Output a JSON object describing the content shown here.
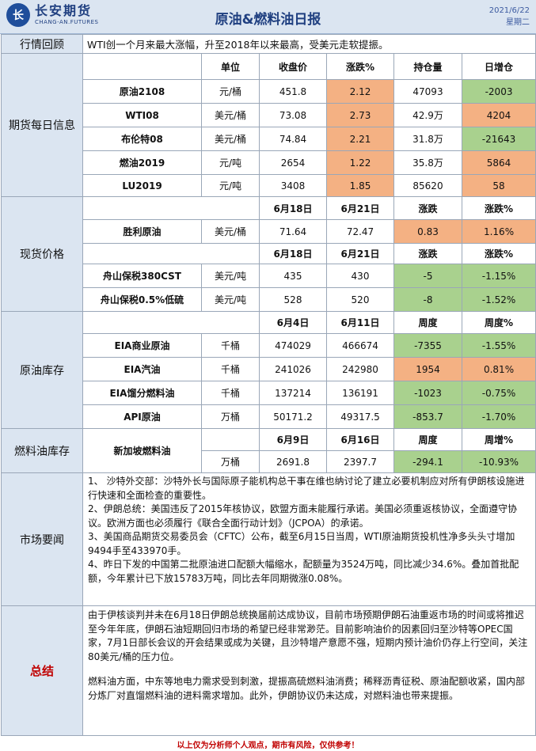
{
  "header": {
    "logo_mark": "长",
    "logo_cn": "长安期货",
    "logo_en": "CHANG-AN.FUTURES",
    "title": "原油&燃料油日报",
    "date": "2021/6/22",
    "weekday": "星期二"
  },
  "overview": {
    "label": "行情回顾",
    "text": "WTI创一个月来最大涨幅，升至2018年以来最高，受美元走软提振。"
  },
  "futures": {
    "label": "期货每日信息",
    "headers": [
      "单位",
      "收盘价",
      "涨跌%",
      "持仓量",
      "日增仓"
    ],
    "rows": [
      {
        "name": "原油2108",
        "unit": "元/桶",
        "close": "451.8",
        "chg": "2.12",
        "oi": "47093",
        "doi": "-2003"
      },
      {
        "name": "WTI08",
        "unit": "美元/桶",
        "close": "73.08",
        "chg": "2.73",
        "oi": "42.9万",
        "doi": "4204"
      },
      {
        "name": "布伦特08",
        "unit": "美元/桶",
        "close": "74.84",
        "chg": "2.21",
        "oi": "31.8万",
        "doi": "-21643"
      },
      {
        "name": "燃油2019",
        "unit": "元/吨",
        "close": "2654",
        "chg": "1.22",
        "oi": "35.8万",
        "doi": "5864"
      },
      {
        "name": "LU2019",
        "unit": "元/吨",
        "close": "3408",
        "chg": "1.85",
        "oi": "85620",
        "doi": "58"
      }
    ]
  },
  "spot": {
    "label": "现货价格",
    "h1": [
      "6月18日",
      "6月21日",
      "涨跌",
      "涨跌%"
    ],
    "r1": {
      "name": "胜利原油",
      "unit": "美元/桶",
      "a": "71.64",
      "b": "72.47",
      "chg": "0.83",
      "pct": "1.16%"
    },
    "h2": [
      "6月18日",
      "6月21日",
      "涨跌",
      "涨跌%"
    ],
    "r2": [
      {
        "name": "舟山保税380CST",
        "unit": "美元/吨",
        "a": "435",
        "b": "430",
        "chg": "-5",
        "pct": "-1.15%"
      },
      {
        "name": "舟山保税0.5%低硫",
        "unit": "美元/吨",
        "a": "528",
        "b": "520",
        "chg": "-8",
        "pct": "-1.52%"
      }
    ]
  },
  "crude_stock": {
    "label": "原油库存",
    "headers": [
      "6月4日",
      "6月11日",
      "周度",
      "周度%"
    ],
    "rows": [
      {
        "name": "EIA商业原油",
        "unit": "千桶",
        "a": "474029",
        "b": "466674",
        "chg": "-7355",
        "pct": "-1.55%"
      },
      {
        "name": "EIA汽油",
        "unit": "千桶",
        "a": "241026",
        "b": "242980",
        "chg": "1954",
        "pct": "0.81%"
      },
      {
        "name": "EIA馏分燃料油",
        "unit": "千桶",
        "a": "137214",
        "b": "136191",
        "chg": "-1023",
        "pct": "-0.75%"
      },
      {
        "name": "API原油",
        "unit": "万桶",
        "a": "50171.2",
        "b": "49317.5",
        "chg": "-853.7",
        "pct": "-1.70%"
      }
    ]
  },
  "fuel_stock": {
    "label": "燃料油库存",
    "name": "新加坡燃料油",
    "headers": [
      "6月9日",
      "6月16日",
      "周度",
      "周增%"
    ],
    "row": {
      "unit": "万桶",
      "a": "2691.8",
      "b": "2397.7",
      "chg": "-294.1",
      "pct": "-10.93%"
    }
  },
  "market_news": {
    "label": "市场要闻",
    "items": [
      "1、 沙特外交部：沙特外长与国际原子能机构总干事在维也纳讨论了建立必要机制应对所有伊朗核设施进行快速和全面检查的重要性。",
      "2、伊朗总统：美国违反了2015年核协议，欧盟方面未能履行承诺。美国必须重返核协议，全面遵守协议。欧洲方面也必须履行《联合全面行动计划》（JCPOA）的承诺。",
      "3、美国商品期货交易委员会（CFTC）公布，截至6月15日当周，WTI原油期货投机性净多头头寸增加9494手至433970手。",
      "4、昨日下发的中国第二批原油进口配额大幅缩水，配额量为3524万吨，同比减少34.6%。叠加首批配额，今年累计已下放15783万吨，同比去年同期微涨0.08%。"
    ]
  },
  "summary": {
    "label": "总结",
    "p1": "由于伊核谈判并未在6月18日伊朗总统换届前达成协议，目前市场预期伊朗石油重返市场的时间或将推迟至今年年底，伊朗石油短期回归市场的希望已经非常渺茫。目前影响油价的因素回归至沙特等OPEC国家，7月1日部长会议的开会结果或成为关键，且沙特增产意愿不强，短期内预计油价仍存上行空间，关注80美元/桶的压力位。",
    "p2": "燃料油方面，中东等地电力需求受到刺激，提振高硫燃料油消费；稀释沥青征税、原油配额收紧，国内部分炼厂对直馏燃料油的进料需求增加。此外，伊朗协议仍未达成，对燃料油也带来提振。"
  },
  "footer": "以上仅为分析师个人观点，期市有风险，仅供参考！"
}
